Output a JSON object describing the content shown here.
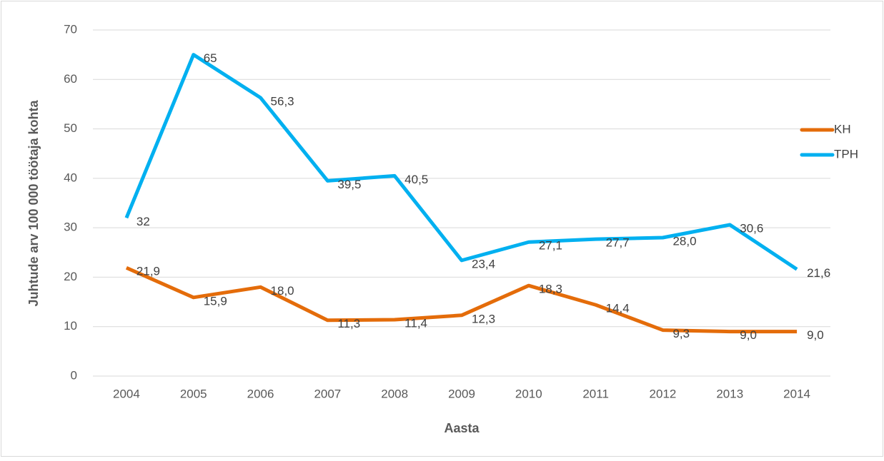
{
  "chart_data": {
    "type": "line",
    "y_label": "Juhtude arv 100 000 töötaja kohta",
    "x_label": "Aasta",
    "categories": [
      "2004",
      "2005",
      "2006",
      "2007",
      "2008",
      "2009",
      "2010",
      "2011",
      "2012",
      "2013",
      "2014"
    ],
    "series": [
      {
        "name": "KH",
        "color": "#e46c0a",
        "values": [
          21.9,
          15.9,
          18.0,
          11.3,
          11.4,
          12.3,
          18.3,
          14.4,
          9.3,
          9.0,
          9.0
        ],
        "value_labels": [
          "21,9",
          "15,9",
          "18,0",
          "11,3",
          "11,4",
          "12,3",
          "18,3",
          "14,4",
          "9,3",
          "9,0",
          "9,0"
        ]
      },
      {
        "name": "TPH",
        "color": "#00b0f0",
        "values": [
          32,
          65,
          56.3,
          39.5,
          40.5,
          23.4,
          27.1,
          27.7,
          28.0,
          30.6,
          21.6
        ],
        "value_labels": [
          "32",
          "65",
          "56,3",
          "39,5",
          "40,5",
          "23,4",
          "27,1",
          "27,7",
          "28,0",
          "30,6",
          "21,6"
        ]
      }
    ],
    "ylim": [
      0,
      70
    ],
    "yticks": [
      0,
      10,
      20,
      30,
      40,
      50,
      60,
      70
    ],
    "grid": true,
    "legend": "right"
  }
}
